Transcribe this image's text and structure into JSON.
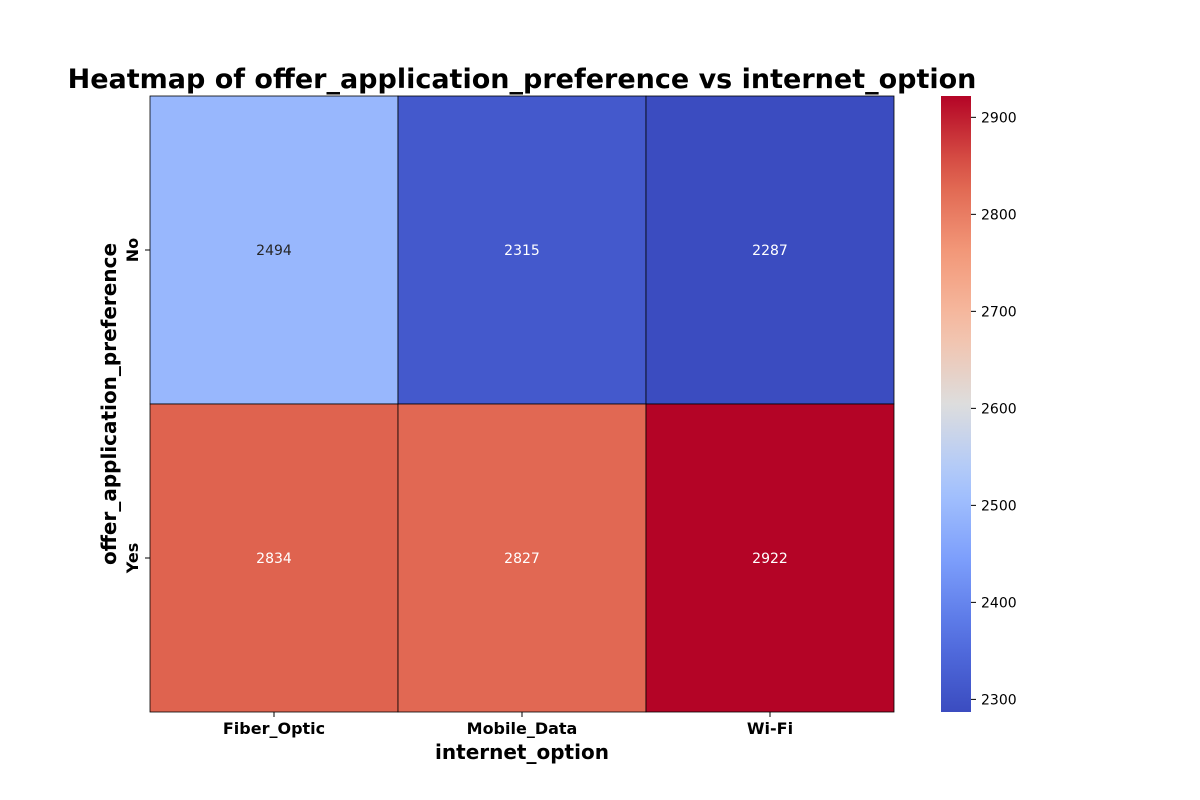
{
  "chart_data": {
    "type": "heatmap",
    "title": "Heatmap of offer_application_preference vs internet_option",
    "xlabel": "internet_option",
    "ylabel": "offer_application_preference",
    "x_categories": [
      "Fiber_Optic",
      "Mobile_Data",
      "Wi-Fi"
    ],
    "y_categories": [
      "No",
      "Yes"
    ],
    "values": [
      [
        2494,
        2315,
        2287
      ],
      [
        2834,
        2827,
        2922
      ]
    ],
    "colormap": "coolwarm",
    "vmin": 2287,
    "vmax": 2922,
    "colorbar_ticks": [
      2300,
      2400,
      2500,
      2600,
      2700,
      2800,
      2900
    ],
    "cell_border_color": "#000000",
    "annotations": true
  }
}
